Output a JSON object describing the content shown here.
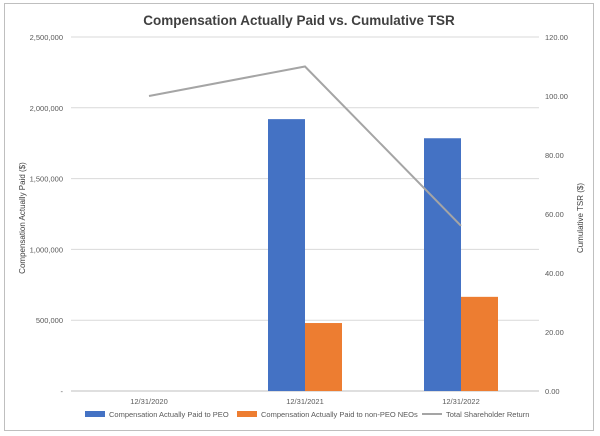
{
  "chart_data": {
    "type": "bar",
    "title": "Compensation Actually Paid vs. Cumulative TSR",
    "categories": [
      "12/31/2020",
      "12/31/2021",
      "12/31/2022"
    ],
    "xlabel": "",
    "ylabel": "Compensation  Actually  Paid ($)",
    "y2label": "Cumulative TSR ($)",
    "ylim": [
      0,
      2500000
    ],
    "y2lim": [
      0,
      120
    ],
    "yticks": [
      "-",
      "500,000",
      "1,000,000",
      "1,500,000",
      "2,000,000",
      "2,500,000"
    ],
    "y2ticks": [
      "0.00",
      "20.00",
      "40.00",
      "60.00",
      "80.00",
      "100.00",
      "120.00"
    ],
    "grid": true,
    "legend_position": "bottom",
    "series": [
      {
        "name": "Compensation Actually Paid to PEO",
        "kind": "bar",
        "axis": "left",
        "color": "#4472c4",
        "values": [
          null,
          1920000,
          1785000
        ]
      },
      {
        "name": "Compensation Actually Paid to non-PEO NEOs",
        "kind": "bar",
        "axis": "left",
        "color": "#ed7d31",
        "values": [
          null,
          480000,
          665000
        ]
      },
      {
        "name": "Total Shareholder Return",
        "kind": "line",
        "axis": "right",
        "color": "#a5a5a5",
        "values": [
          100.0,
          110.0,
          56.0
        ]
      }
    ]
  }
}
